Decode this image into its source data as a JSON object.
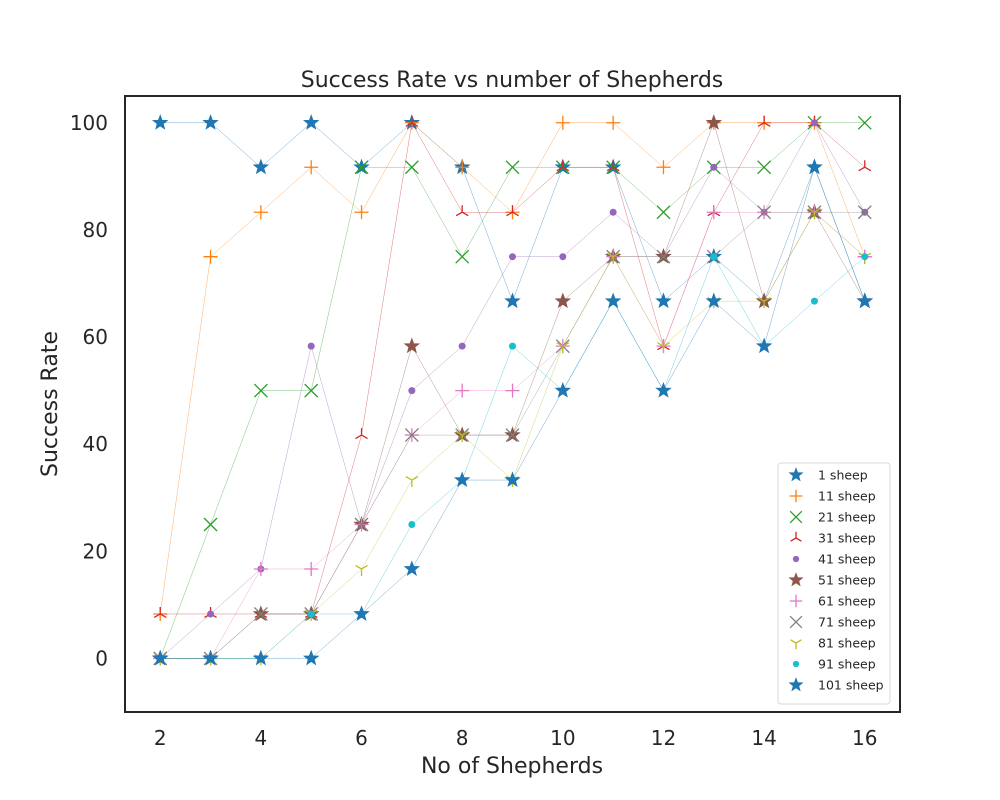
{
  "chart_data": {
    "type": "line",
    "title": "Success Rate vs number of Shepherds",
    "xlabel": "No of Shepherds",
    "ylabel": "Success Rate",
    "xlim": [
      1.3,
      16.7
    ],
    "ylim": [
      -10,
      105
    ],
    "xticks": [
      2,
      4,
      6,
      8,
      10,
      12,
      14,
      16
    ],
    "yticks": [
      0,
      20,
      40,
      60,
      80,
      100
    ],
    "grid": false,
    "legend_position": "lower-right",
    "x": [
      2,
      3,
      4,
      5,
      6,
      7,
      8,
      9,
      10,
      11,
      12,
      13,
      14,
      15,
      16
    ],
    "series": [
      {
        "name": "1 sheep",
        "color": "#1f77b4",
        "marker": "star",
        "values": [
          100,
          100,
          91.7,
          100,
          91.7,
          100,
          91.7,
          66.7,
          91.7,
          91.7,
          66.7,
          75,
          66.7,
          91.7,
          66.7
        ]
      },
      {
        "name": "11 sheep",
        "color": "#ff7f0e",
        "marker": "plus",
        "values": [
          8.3,
          75,
          83.3,
          91.7,
          83.3,
          100,
          91.7,
          83.3,
          100,
          100,
          91.7,
          100,
          100,
          100,
          75
        ]
      },
      {
        "name": "21 sheep",
        "color": "#2ca02c",
        "marker": "x",
        "values": [
          0,
          25,
          50,
          50,
          91.7,
          91.7,
          75,
          91.7,
          91.7,
          91.7,
          83.3,
          91.7,
          91.7,
          100,
          100
        ]
      },
      {
        "name": "31 sheep",
        "color": "#d62728",
        "marker": "tri_down",
        "values": [
          8.3,
          8.3,
          8.3,
          8.3,
          41.7,
          100,
          83.3,
          83.3,
          91.7,
          91.7,
          58.3,
          83.3,
          100,
          100,
          91.7
        ]
      },
      {
        "name": "41 sheep",
        "color": "#9467bd",
        "marker": "point",
        "values": [
          0,
          8.3,
          16.7,
          58.3,
          25,
          50,
          58.3,
          75,
          75,
          83.3,
          75,
          91.7,
          83.3,
          100,
          83.3
        ]
      },
      {
        "name": "51 sheep",
        "color": "#8c564b",
        "marker": "star",
        "values": [
          0,
          0,
          8.3,
          8.3,
          25,
          58.3,
          41.7,
          41.7,
          66.7,
          75,
          75,
          100,
          66.7,
          83.3,
          66.7
        ]
      },
      {
        "name": "61 sheep",
        "color": "#e377c2",
        "marker": "plus",
        "values": [
          0,
          0,
          16.7,
          16.7,
          25,
          41.7,
          50,
          50,
          58.3,
          75,
          58.3,
          83.3,
          83.3,
          83.3,
          75
        ]
      },
      {
        "name": "71 sheep",
        "color": "#7f7f7f",
        "marker": "x",
        "values": [
          0,
          0,
          8.3,
          8.3,
          25,
          41.7,
          41.7,
          41.7,
          58.3,
          75,
          75,
          75,
          83.3,
          83.3,
          83.3
        ]
      },
      {
        "name": "81 sheep",
        "color": "#bcbd22",
        "marker": "tri_up",
        "values": [
          0,
          0,
          0,
          8.3,
          16.7,
          33.3,
          41.7,
          33.3,
          58.3,
          75,
          58.3,
          66.7,
          66.7,
          83.3,
          75
        ]
      },
      {
        "name": "91 sheep",
        "color": "#17becf",
        "marker": "point",
        "values": [
          0,
          0,
          0,
          8.3,
          8.3,
          25,
          33.3,
          58.3,
          50,
          66.7,
          50,
          75,
          58.3,
          66.7,
          75
        ]
      },
      {
        "name": "101 sheep",
        "color": "#1f77b4",
        "marker": "star",
        "values": [
          0,
          0,
          0,
          0,
          8.3,
          16.7,
          33.3,
          33.3,
          50,
          66.7,
          50,
          66.7,
          58.3,
          91.7,
          66.7
        ]
      }
    ]
  }
}
